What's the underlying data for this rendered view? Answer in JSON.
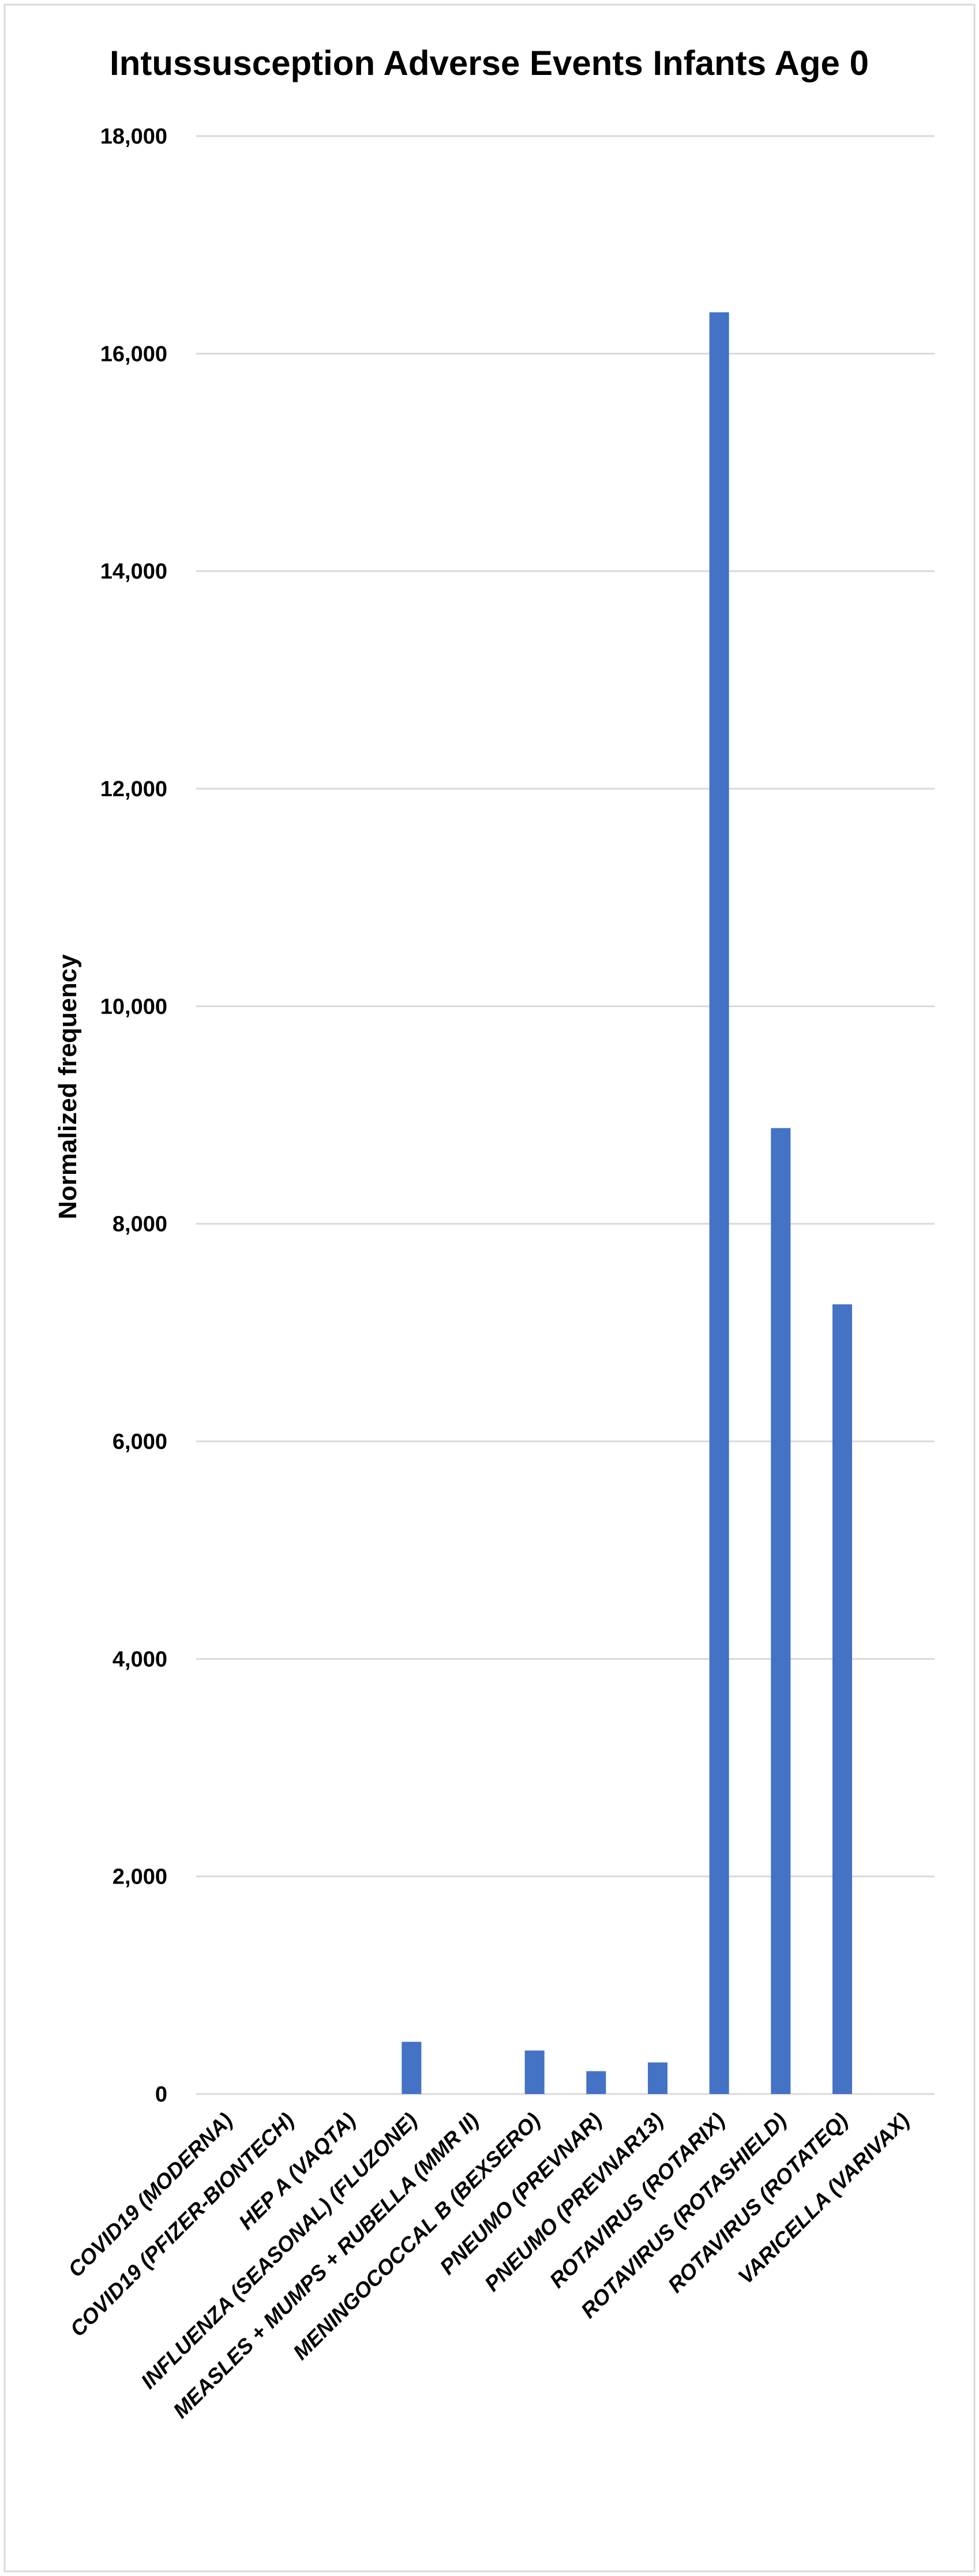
{
  "chart_data": {
    "type": "bar",
    "title": "Intussusception Adverse Events Infants Age 0",
    "xlabel": "",
    "ylabel": "Normalized frequency",
    "ylim": [
      0,
      18000
    ],
    "yticks": [
      0,
      2000,
      4000,
      6000,
      8000,
      10000,
      12000,
      14000,
      16000,
      18000
    ],
    "ytick_labels": [
      "0",
      "2,000",
      "4,000",
      "6,000",
      "8,000",
      "10,000",
      "12,000",
      "14,000",
      "16,000",
      "18,000"
    ],
    "grid": true,
    "legend": "none",
    "bar_color": "#4472C4",
    "categories": [
      "COVID19 (MODERNA)",
      "COVID19 (PFIZER-BIONTECH)",
      "HEP A (VAQTA)",
      "INFLUENZA (SEASONAL) (FLUZONE)",
      "MEASLES + MUMPS + RUBELLA (MMR II)",
      "MENINGOCOCCAL B (BEXSERO)",
      "PNEUMO (PREVNAR)",
      "PNEUMO (PREVNAR13)",
      "ROTAVIRUS (ROTARIX)",
      "ROTAVIRUS (ROTASHIELD)",
      "ROTAVIRUS (ROTATEQ)",
      "VARICELLA (VARIVAX)"
    ],
    "values": [
      0,
      0,
      0,
      480,
      0,
      400,
      210,
      290,
      16380,
      8880,
      7260,
      0
    ]
  }
}
